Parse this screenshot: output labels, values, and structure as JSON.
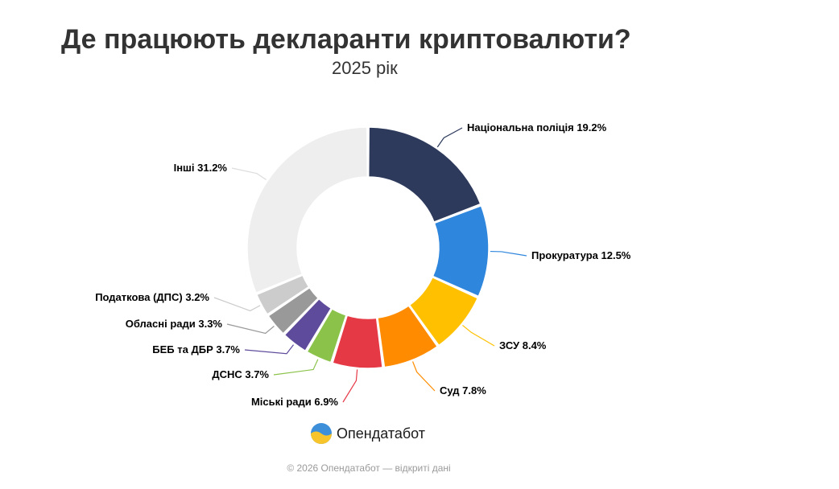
{
  "title": "Де працюють декларанти криптовалюти?",
  "subtitle": "2025 рік",
  "chart_data": {
    "type": "pie",
    "donut": true,
    "unit": "%",
    "slices": [
      {
        "label": "Національна поліція",
        "value": 19.2,
        "value_text": "19.2%",
        "color": "#2d3a5c"
      },
      {
        "label": "Прокуратура",
        "value": 12.5,
        "value_text": "12.5%",
        "color": "#2f86dd"
      },
      {
        "label": "ЗСУ",
        "value": 8.4,
        "value_text": "8.4%",
        "color": "#ffc000"
      },
      {
        "label": "Суд",
        "value": 7.8,
        "value_text": "7.8%",
        "color": "#ff8c00"
      },
      {
        "label": "Міські ради",
        "value": 6.9,
        "value_text": "6.9%",
        "color": "#e63946"
      },
      {
        "label": "ДСНС",
        "value": 3.7,
        "value_text": "3.7%",
        "color": "#8bc34a"
      },
      {
        "label": "БЕБ та ДБР",
        "value": 3.7,
        "value_text": "3.7%",
        "color": "#5f4b9b"
      },
      {
        "label": "Обласні ради",
        "value": 3.3,
        "value_text": "3.3%",
        "color": "#999999"
      },
      {
        "label": "Податкова (ДПС)",
        "value": 3.2,
        "value_text": "3.2%",
        "color": "#cccccc"
      },
      {
        "label": "Інші",
        "value": 31.2,
        "value_text": "31.2%",
        "color": "#eeeeee"
      }
    ]
  },
  "brand": {
    "name": "Опендатабот"
  },
  "footer": "© 2026 Опендатабот — відкриті дані"
}
